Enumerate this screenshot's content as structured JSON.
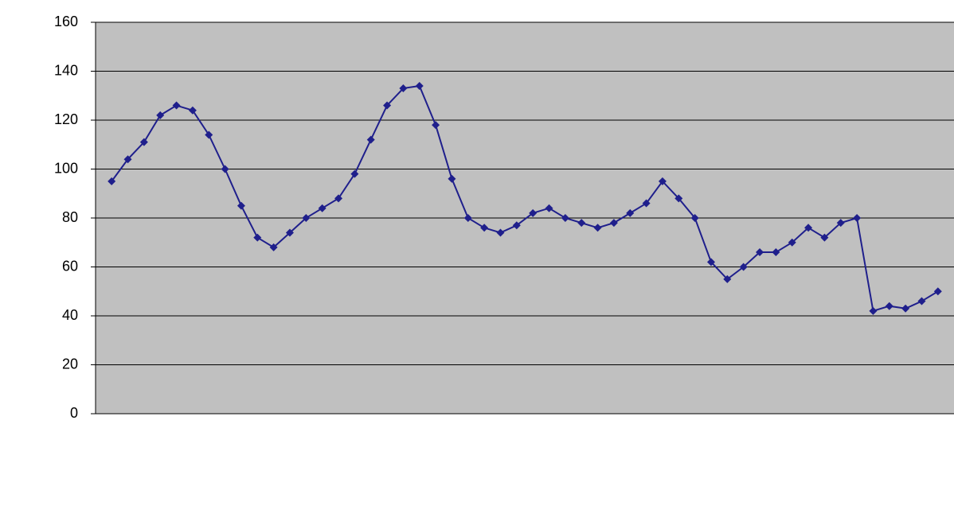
{
  "chart_data": {
    "type": "line",
    "categories": [
      null,
      null,
      null,
      null,
      null,
      null,
      null,
      null,
      null,
      null,
      null,
      null,
      null,
      null,
      null,
      null,
      null,
      null,
      null,
      null,
      null,
      null,
      null,
      null,
      null,
      null,
      null,
      null,
      null,
      null,
      null,
      null,
      null,
      null,
      null,
      null,
      null,
      null,
      null,
      null,
      null,
      null,
      null,
      null,
      null,
      null,
      null,
      null,
      null,
      null,
      null,
      null
    ],
    "series": [
      {
        "color": "#1f1f8c",
        "values": [
          95,
          104,
          111,
          122,
          126,
          124,
          114,
          100,
          85,
          72,
          68,
          74,
          80,
          84,
          88,
          98,
          112,
          126,
          133,
          134,
          118,
          96,
          80,
          76,
          74,
          77,
          82,
          84,
          80,
          78,
          76,
          78,
          82,
          86,
          95,
          88,
          80,
          62,
          55,
          60,
          66,
          66,
          70,
          76,
          72,
          78,
          80,
          42,
          44,
          43,
          46,
          50
        ]
      }
    ],
    "ylim": [
      0,
      160
    ],
    "yticks": [
      0,
      20,
      40,
      60,
      80,
      100,
      120,
      140,
      160
    ],
    "grid": true
  }
}
